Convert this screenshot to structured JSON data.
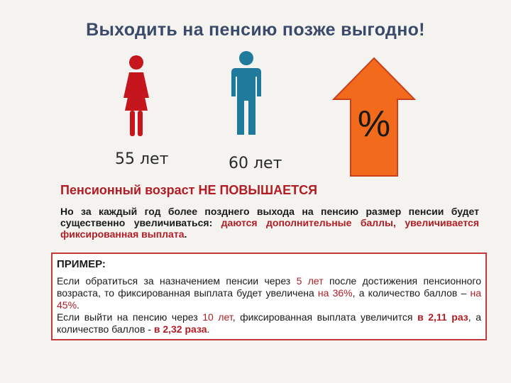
{
  "title": "Выходить на пенсию позже выгодно!",
  "ages": {
    "woman": "55 лет",
    "man": "60 лет"
  },
  "arrow": {
    "symbol": "%",
    "color": "#f26a1b"
  },
  "headline": "Пенсионный возраст НЕ ПОВЫШАЕТСЯ",
  "paragraph": {
    "part1": "Но за каждый год более позднего выхода на пенсию размер пенсии будет существенно увеличиваться: ",
    "part2": "даются дополнительные баллы, увеличивается фиксированная выплата",
    "part3": "."
  },
  "example": {
    "title": "ПРИМЕР:",
    "line1": {
      "a": "Если обратиться за назначением пенсии через ",
      "b": "5 лет",
      "c": " после достижения пенсионного возраста, то фиксированная выплата будет увеличена ",
      "d": "на 36%",
      "e": ", а количество баллов – ",
      "f": "на 45%",
      "g": "."
    },
    "line2": {
      "a": "Если выйти на пенсию через ",
      "b": "10 лет",
      "c": ", фиксированная выплата увеличится ",
      "d": "в 2,11 раз",
      "e": ", а количество баллов - ",
      "f": "в 2,32 раза",
      "g": "."
    }
  },
  "colors": {
    "woman": "#c4161c",
    "man": "#1f7a9c",
    "accent": "#b01d24",
    "title": "#3a4a6a"
  }
}
